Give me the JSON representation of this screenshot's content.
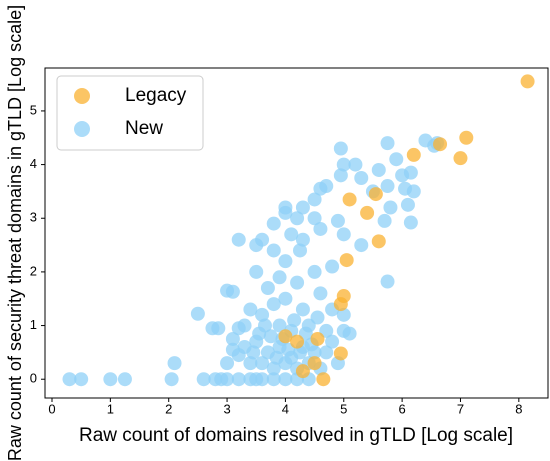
{
  "chart_data": {
    "type": "scatter",
    "xlabel": "Raw count of domains resolved in gTLD [Log scale]",
    "ylabel": "Raw count of security threat domains in gTLD [Log scale]",
    "xlim": [
      -0.12,
      8.5
    ],
    "ylim": [
      -0.35,
      5.8
    ],
    "xticks": [
      0,
      1,
      2,
      3,
      4,
      5,
      6,
      7,
      8
    ],
    "yticks": [
      0,
      1,
      2,
      3,
      4,
      5
    ],
    "legend": "upper left",
    "series": [
      {
        "name": "New",
        "color": "#8fd0f7",
        "x": [
          0.3,
          0.5,
          1.0,
          1.25,
          2.05,
          2.1,
          2.5,
          2.75,
          2.85,
          3.0,
          3.1,
          3.2,
          3.1,
          3.2,
          2.6,
          2.8,
          3.0,
          3.2,
          3.4,
          3.6,
          3.8,
          4.0,
          4.2,
          4.4,
          2.9,
          3.5,
          6.4,
          6.55,
          6.6,
          6.15,
          6.05,
          6.2,
          6.1,
          6.15,
          5.75,
          5.9,
          6.0,
          5.6,
          5.3,
          5.2,
          5.0,
          4.95,
          4.95,
          4.6,
          4.5,
          4.7,
          5.75,
          5.8,
          5.7,
          5.75,
          5.5,
          4.3,
          4.2,
          4.0,
          3.8,
          3.6,
          3.5,
          3.8,
          4.0,
          4.1,
          4.3,
          4.6,
          4.9,
          5.0,
          5.3,
          4.8,
          4.5,
          4.2,
          3.9,
          3.7,
          3.5,
          3.4,
          3.6,
          3.8,
          4.0,
          4.3,
          4.6,
          4.8,
          5.0,
          3.9,
          4.1,
          4.4,
          4.7,
          3.3,
          3.5,
          3.7,
          3.9,
          4.1,
          4.3,
          4.5,
          4.7,
          3.4,
          3.6,
          3.8,
          4.0,
          4.2,
          4.4,
          4.6,
          3.0,
          3.2,
          3.3,
          3.1,
          4.8,
          5.0,
          4.9,
          3.55,
          3.75,
          3.95,
          4.15,
          4.35,
          4.55,
          3.65,
          4.25,
          4.45,
          3.85,
          4.05,
          3.45,
          5.1,
          4.0,
          4.5,
          4.25
        ],
        "values": [
          0,
          0,
          0,
          0,
          0,
          0.3,
          1.22,
          0.95,
          0.95,
          1.65,
          1.63,
          2.6,
          0.75,
          0.95,
          0,
          0,
          0,
          0,
          0,
          0,
          0,
          0,
          0,
          0,
          0,
          0,
          4.45,
          4.35,
          4.4,
          3.85,
          3.55,
          3.5,
          3.25,
          2.92,
          4.4,
          4.1,
          3.8,
          3.9,
          3.75,
          4.0,
          4.0,
          4.3,
          3.8,
          3.55,
          3.35,
          3.6,
          3.6,
          3.2,
          2.95,
          1.82,
          3.5,
          3.2,
          3.0,
          3.1,
          2.9,
          2.6,
          2.5,
          2.4,
          2.2,
          2.7,
          2.6,
          2.8,
          2.95,
          2.7,
          2.5,
          2.1,
          2.0,
          1.8,
          1.9,
          1.7,
          2.0,
          1.3,
          1.2,
          1.4,
          1.5,
          1.3,
          1.6,
          1.3,
          1.2,
          1.0,
          0.9,
          1.0,
          0.9,
          0.6,
          0.7,
          0.5,
          0.6,
          0.4,
          0.6,
          0.5,
          0.5,
          0.3,
          0.3,
          0.2,
          0.3,
          0.2,
          0.3,
          0.2,
          0.3,
          0.45,
          1.0,
          0.55,
          0.7,
          0.9,
          0.3,
          0.85,
          0.8,
          0.75,
          1.1,
          0.85,
          1.15,
          1.0,
          0.5,
          0.65,
          0.4,
          0.55,
          0.5,
          0.85,
          3.2,
          3.0,
          2.4
        ]
      },
      {
        "name": "Legacy",
        "color": "#f9b131",
        "x": [
          8.15,
          7.1,
          7.0,
          6.65,
          6.2,
          5.55,
          5.1,
          5.4,
          5.6,
          5.05,
          5.0,
          4.95,
          4.95,
          4.65,
          4.55,
          4.2,
          4.5,
          4.0,
          4.3
        ],
        "values": [
          5.55,
          4.5,
          4.12,
          4.38,
          4.18,
          3.45,
          3.35,
          3.1,
          2.57,
          2.22,
          1.55,
          1.4,
          0.48,
          0,
          0.75,
          0.7,
          0.3,
          0.8,
          0.15
        ]
      }
    ]
  }
}
